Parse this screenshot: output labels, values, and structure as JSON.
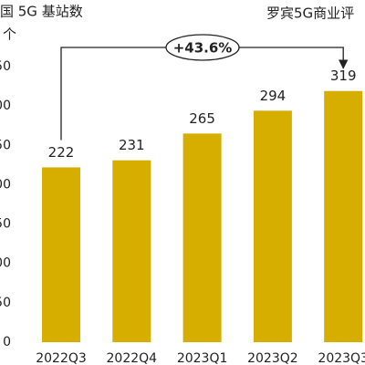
{
  "chart_data": {
    "type": "bar",
    "title": "国 5G 基站数",
    "unit": "个",
    "source": "罗宾5G商业评",
    "annotation": "+43.6%",
    "categories": [
      "2022Q3",
      "2022Q4",
      "2023Q1",
      "2023Q2",
      "2023Q3"
    ],
    "values": [
      222,
      231,
      265,
      294,
      319
    ],
    "color": "#d6ae00",
    "ylim": [
      0,
      350
    ],
    "yticks": [
      0,
      {
        "value": 50,
        "label": "50"
      },
      {
        "value": 100,
        "label": "00"
      },
      {
        "value": 150,
        "label": "50"
      },
      {
        "value": 200,
        "label": "00"
      },
      {
        "value": 250,
        "label": "50"
      },
      {
        "value": 300,
        "label": "00"
      },
      {
        "value": 350,
        "label": "50"
      }
    ],
    "grid": false
  }
}
